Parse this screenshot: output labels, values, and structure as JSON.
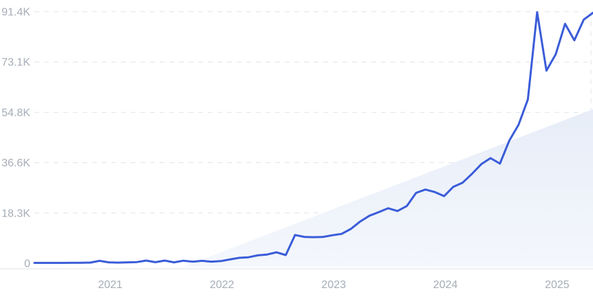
{
  "chart_data": {
    "type": "line",
    "title": "",
    "xlabel": "",
    "ylabel": "",
    "ylim": [
      0,
      91400
    ],
    "grid": "horizontal-dashed",
    "legend": "none",
    "y_tick_labels": [
      "91.4K",
      "73.1K",
      "54.8K",
      "36.6K",
      "18.3K",
      "0"
    ],
    "y_tick_values": [
      91400,
      73120,
      54840,
      36560,
      18280,
      0
    ],
    "x_tick_labels": [
      "2021",
      "2022",
      "2023",
      "2024",
      "2025"
    ],
    "x": [
      "2020-05",
      "2020-06",
      "2020-07",
      "2020-08",
      "2020-09",
      "2020-10",
      "2020-11",
      "2020-12",
      "2021-01",
      "2021-02",
      "2021-03",
      "2021-04",
      "2021-05",
      "2021-06",
      "2021-07",
      "2021-08",
      "2021-09",
      "2021-10",
      "2021-11",
      "2021-12",
      "2022-01",
      "2022-02",
      "2022-03",
      "2022-04",
      "2022-05",
      "2022-06",
      "2022-07",
      "2022-08",
      "2022-09",
      "2022-10",
      "2022-11",
      "2022-12",
      "2023-01",
      "2023-02",
      "2023-03",
      "2023-04",
      "2023-05",
      "2023-06",
      "2023-07",
      "2023-08",
      "2023-09",
      "2023-10",
      "2023-11",
      "2023-12",
      "2024-01",
      "2024-02",
      "2024-03",
      "2024-04",
      "2024-05",
      "2024-06",
      "2024-07",
      "2024-08",
      "2024-09",
      "2024-10",
      "2024-11",
      "2024-12",
      "2025-01",
      "2025-02",
      "2025-03",
      "2025-04",
      "2025-05"
    ],
    "values": [
      150,
      150,
      150,
      150,
      180,
      200,
      250,
      900,
      350,
      250,
      350,
      450,
      1000,
      400,
      1000,
      350,
      950,
      600,
      900,
      600,
      800,
      1400,
      2000,
      2200,
      2900,
      3200,
      4000,
      3000,
      10300,
      9600,
      9500,
      9600,
      10200,
      10700,
      12500,
      15200,
      17300,
      18600,
      20000,
      19000,
      20800,
      25600,
      26800,
      25900,
      24400,
      27800,
      29300,
      32500,
      36000,
      38200,
      36200,
      44500,
      50300,
      59500,
      91200,
      70000,
      76000,
      87000,
      81000,
      88500,
      91000
    ],
    "trend_area": {
      "start": "2021-09",
      "end_top_value": 56000
    }
  },
  "colors": {
    "line": "#3A5CD8",
    "trend_area_top": "#E7EDF8",
    "trend_area_bottom": "#F4F7FC",
    "gridline": "#DFE3E9",
    "axis_label": "#A6ADB7",
    "bottom_border": "#E9EBEF",
    "background": "#FFFFFF"
  }
}
